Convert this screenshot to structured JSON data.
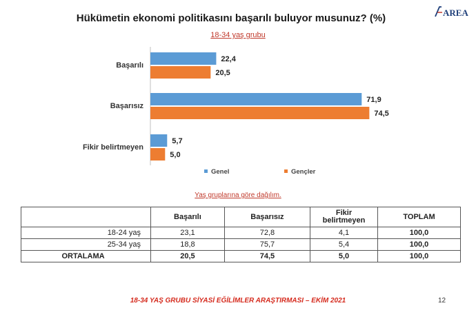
{
  "title": "Hükümetin ekonomi politikasını başarılı buluyor musunuz? (%)",
  "subtitle": "18-34 yaş grubu",
  "logo_text": "AREA",
  "chart_data": {
    "type": "bar",
    "orientation": "horizontal",
    "title": "Hükümetin ekonomi politikasını başarılı buluyor musunuz? (%)",
    "subtitle": "18-34 yaş grubu",
    "categories": [
      "Başarılı",
      "Başarısız",
      "Fikir belirtmeyen"
    ],
    "series": [
      {
        "name": "Genel",
        "values": [
          22.4,
          71.9,
          5.7
        ],
        "color": "#5b9bd5"
      },
      {
        "name": "Gençler",
        "values": [
          20.5,
          74.5,
          5.0
        ],
        "color": "#ed7d31"
      }
    ],
    "value_labels": [
      [
        "22,4",
        "71,9",
        "5,7"
      ],
      [
        "20,5",
        "74,5",
        "5,0"
      ]
    ],
    "xlim": [
      0,
      80
    ],
    "grid": false,
    "legend_position": "bottom"
  },
  "table": {
    "caption": "Yaş gruplarına göre dağılım.",
    "headers": [
      "",
      "Başarılı",
      "Başarısız",
      "Fikir belirtmeyen",
      "TOPLAM"
    ],
    "rows": [
      {
        "label": "18-24 yaş",
        "values": [
          "23,1",
          "72,8",
          "4,1",
          "100,0"
        ]
      },
      {
        "label": "25-34 yaş",
        "values": [
          "18,8",
          "75,7",
          "5,4",
          "100,0"
        ]
      }
    ],
    "average": {
      "label": "ORTALAMA",
      "values": [
        "20,5",
        "74,5",
        "5,0",
        "100,0"
      ]
    }
  },
  "footer": "18-34 YAŞ GRUBU SİYASİ EĞİLİMLER ARAŞTIRMASI – EKİM 2021",
  "page_number": "12"
}
